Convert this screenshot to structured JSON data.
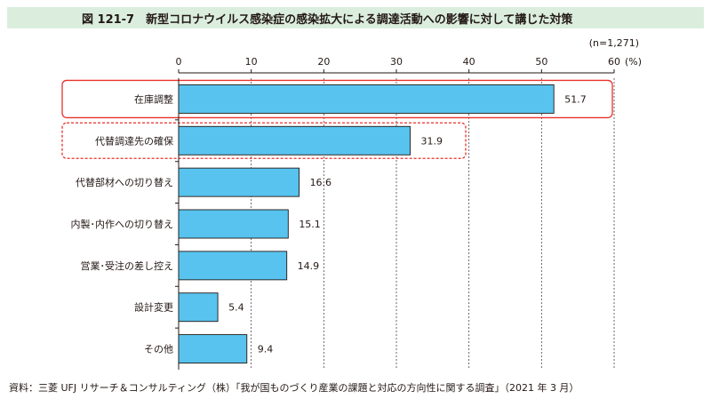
{
  "title": "図 121-7　新型コロナウイルス感染症の感染拡大による調達活動への影響に対して講じた対策",
  "source": "資料：三菱 UFJ リサーチ＆コンサルティング（株）「我が国ものづくり産業の課題と対応の方向性に関する調査」（2021 年 3 月）",
  "colors": {
    "bar": "#58c3ee",
    "bar_stroke": "#231815",
    "highlight": "#e8312a",
    "title_bg": "#dbeedd"
  },
  "chart_data": {
    "type": "bar",
    "orientation": "horizontal",
    "note": "(n=1,271)",
    "unit": "(%)",
    "categories": [
      "在庫調整",
      "代替調達先の確保",
      "代替部材への切り替え",
      "内製･内作への切り替え",
      "営業･受注の差し控え",
      "設計変更",
      "その他"
    ],
    "values": [
      51.7,
      31.9,
      16.6,
      15.1,
      14.9,
      5.4,
      9.4
    ],
    "value_labels": [
      "51.7",
      "31.9",
      "16.6",
      "15.1",
      "14.9",
      "5.4",
      "9.4"
    ],
    "xlim": [
      0,
      60
    ],
    "xticks": [
      "0",
      "10",
      "20",
      "30",
      "40",
      "50",
      "60"
    ],
    "grid": "vertical dashed",
    "highlight": [
      {
        "index": 0,
        "style": "solid"
      },
      {
        "index": 1,
        "style": "dashed"
      }
    ]
  }
}
